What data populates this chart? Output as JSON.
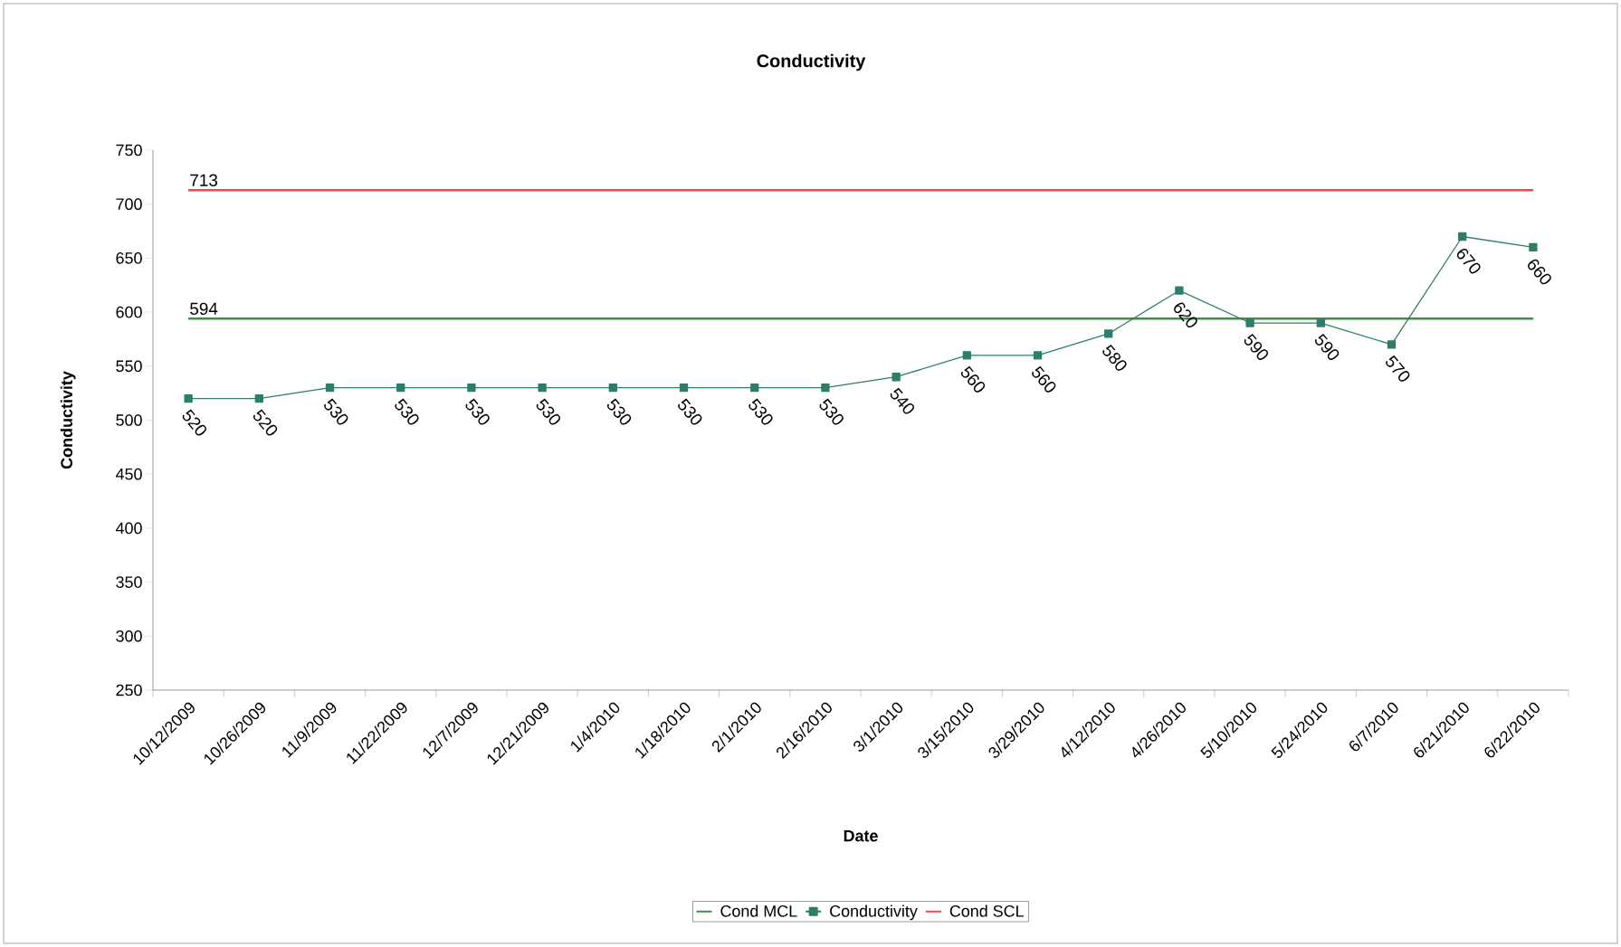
{
  "chart_data": {
    "type": "line",
    "title": "Conductivity",
    "xlabel": "Date",
    "ylabel": "Conductivity",
    "categories": [
      "10/12/2009",
      "10/26/2009",
      "11/9/2009",
      "11/22/2009",
      "12/7/2009",
      "12/21/2009",
      "1/4/2010",
      "1/18/2010",
      "2/1/2010",
      "2/16/2010",
      "3/1/2010",
      "3/15/2010",
      "3/29/2010",
      "4/12/2010",
      "4/26/2010",
      "5/10/2010",
      "5/24/2010",
      "6/7/2010",
      "6/21/2010",
      "6/22/2010"
    ],
    "ylim": [
      250,
      750
    ],
    "yticks": [
      250,
      300,
      350,
      400,
      450,
      500,
      550,
      600,
      650,
      700,
      750
    ],
    "legend": "bottom",
    "series": [
      {
        "name": "Cond MCL",
        "color": "#3d9140",
        "marker": "none",
        "values": [
          594,
          594,
          594,
          594,
          594,
          594,
          594,
          594,
          594,
          594,
          594,
          594,
          594,
          594,
          594,
          594,
          594,
          594,
          594,
          594
        ],
        "value_labels": [
          "594",
          null,
          null,
          null,
          null,
          null,
          null,
          null,
          null,
          null,
          null,
          null,
          null,
          null,
          null,
          null,
          null,
          null,
          null,
          null
        ]
      },
      {
        "name": "Conductivity",
        "color": "#2e7d6b",
        "marker": "square",
        "values": [
          520,
          520,
          530,
          530,
          530,
          530,
          530,
          530,
          530,
          530,
          540,
          560,
          560,
          580,
          620,
          590,
          590,
          570,
          670,
          660
        ],
        "value_labels": [
          "520",
          "520",
          "530",
          "530",
          "530",
          "530",
          "530",
          "530",
          "530",
          "530",
          "540",
          "560",
          "560",
          "580",
          "620",
          "590",
          "590",
          "570",
          "670",
          "660"
        ]
      },
      {
        "name": "Cond SCL",
        "color": "#f04848",
        "marker": "none",
        "values": [
          713,
          713,
          713,
          713,
          713,
          713,
          713,
          713,
          713,
          713,
          713,
          713,
          713,
          713,
          713,
          713,
          713,
          713,
          713,
          713
        ],
        "value_labels": [
          "713",
          null,
          null,
          null,
          null,
          null,
          null,
          null,
          null,
          null,
          null,
          null,
          null,
          null,
          null,
          null,
          null,
          null,
          null,
          null
        ]
      }
    ]
  }
}
